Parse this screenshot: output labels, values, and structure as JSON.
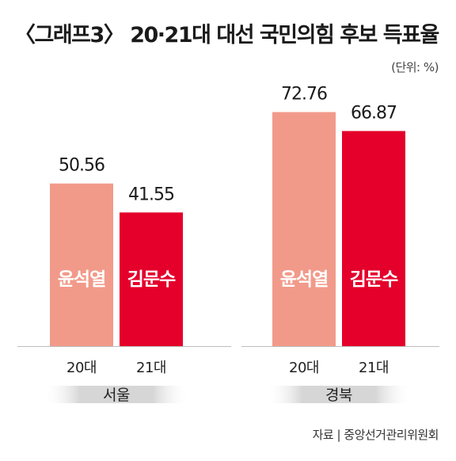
{
  "title": "〈그래프3〉 20·21대 대선 국민의힘 후보 득표율",
  "unit": "(단위: %)",
  "source": "자료 | 중앙선거관리위원회",
  "colors": {
    "series_20": "#f29a8a",
    "series_21": "#e4002b",
    "baseline": "#bdbdbd",
    "region_band": "#dcdcdc"
  },
  "chart_data": [
    {
      "type": "bar",
      "region": "서울",
      "categories": [
        "20대",
        "21대"
      ],
      "values": [
        50.56,
        41.55
      ],
      "value_labels": [
        "50.56",
        "41.55"
      ],
      "bar_labels": [
        "윤석열",
        "김문수"
      ],
      "ylim": [
        0,
        80
      ]
    },
    {
      "type": "bar",
      "region": "경북",
      "categories": [
        "20대",
        "21대"
      ],
      "values": [
        72.76,
        66.87
      ],
      "value_labels": [
        "72.76",
        "66.87"
      ],
      "bar_labels": [
        "윤석열",
        "김문수"
      ],
      "ylim": [
        0,
        80
      ]
    }
  ]
}
